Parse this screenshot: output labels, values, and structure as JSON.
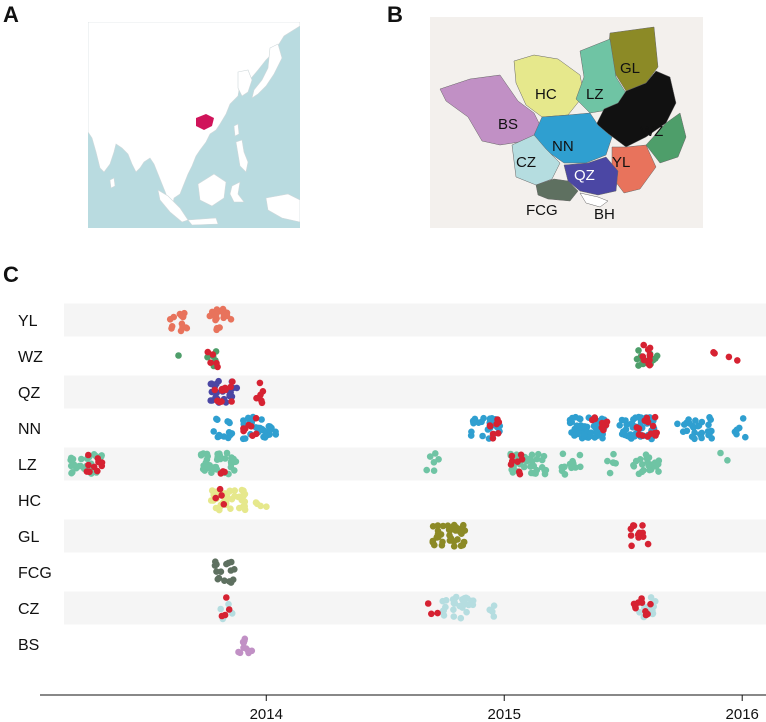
{
  "panels": {
    "a": "A",
    "b": "B",
    "c": "C"
  },
  "colors": {
    "YL": "#e8735c",
    "WZ": "#4e9e6a",
    "QZ": "#4b47a4",
    "NN": "#2f9fd0",
    "LZ": "#6fc4a4",
    "HC": "#e6e88c",
    "GL": "#8c8a26",
    "FCG": "#5e7060",
    "CZ": "#b5dde0",
    "BS": "#c190c5",
    "BH": "#ffffff",
    "BLACK": "#111111",
    "RED": "#d62232",
    "sea": "#b9dbe0",
    "land": "#ffffff",
    "guangxi": "#d0145a",
    "band": "#f5f5f5"
  },
  "map_b": {
    "labels": [
      "GL",
      "HC",
      "LZ",
      "BS",
      "NN",
      "WZ",
      "CZ",
      "YL",
      "QZ",
      "FCG",
      "BH"
    ]
  },
  "chart_data": {
    "type": "scatter",
    "xlim": [
      2013.15,
      2016.1
    ],
    "x_ticks": [
      2014,
      2015,
      2016
    ],
    "x_tick_labels": [
      "2014",
      "2015",
      "2016"
    ],
    "categories": [
      "YL",
      "WZ",
      "QZ",
      "NN",
      "LZ",
      "HC",
      "GL",
      "FCG",
      "CZ",
      "BS"
    ],
    "series": [
      {
        "category": "YL",
        "points": [
          [
            2013.63,
            14
          ],
          [
            2013.8,
            20
          ]
        ],
        "red_points": []
      },
      {
        "category": "WZ",
        "points": [
          [
            2013.62,
            1
          ],
          [
            2013.78,
            6
          ],
          [
            2015.6,
            14
          ]
        ],
        "red_points": [
          [
            2013.78,
            5
          ],
          [
            2015.6,
            10
          ],
          [
            2015.89,
            2
          ],
          [
            2015.96,
            2
          ]
        ]
      },
      {
        "category": "QZ",
        "points": [
          [
            2013.82,
            26
          ]
        ],
        "red_points": [
          [
            2013.82,
            12
          ],
          [
            2013.97,
            6
          ]
        ]
      },
      {
        "category": "NN",
        "points": [
          [
            2013.82,
            14
          ],
          [
            2013.97,
            30
          ],
          [
            2014.92,
            24
          ],
          [
            2015.35,
            50
          ],
          [
            2015.56,
            45
          ],
          [
            2015.8,
            30
          ],
          [
            2015.99,
            6
          ]
        ],
        "red_points": [
          [
            2013.93,
            8
          ],
          [
            2014.95,
            8
          ],
          [
            2015.4,
            10
          ],
          [
            2015.6,
            14
          ]
        ]
      },
      {
        "category": "LZ",
        "points": [
          [
            2013.25,
            30
          ],
          [
            2013.8,
            40
          ],
          [
            2014.7,
            6
          ],
          [
            2015.1,
            34
          ],
          [
            2015.28,
            14
          ],
          [
            2015.45,
            6
          ],
          [
            2015.6,
            22
          ],
          [
            2015.92,
            2
          ]
        ],
        "red_points": [
          [
            2013.28,
            10
          ],
          [
            2013.83,
            3
          ],
          [
            2015.06,
            8
          ]
        ]
      },
      {
        "category": "HC",
        "points": [
          [
            2013.84,
            45
          ],
          [
            2013.98,
            4
          ]
        ],
        "red_points": [
          [
            2013.8,
            4
          ]
        ]
      },
      {
        "category": "GL",
        "points": [
          [
            2014.77,
            40
          ]
        ],
        "red_points": [
          [
            2015.57,
            12
          ]
        ]
      },
      {
        "category": "FCG",
        "points": [
          [
            2013.82,
            16
          ]
        ],
        "red_points": []
      },
      {
        "category": "CZ",
        "points": [
          [
            2013.83,
            6
          ],
          [
            2014.8,
            28
          ],
          [
            2014.94,
            4
          ],
          [
            2015.6,
            14
          ]
        ],
        "red_points": [
          [
            2013.82,
            4
          ],
          [
            2014.7,
            3
          ],
          [
            2015.58,
            10
          ]
        ]
      },
      {
        "category": "BS",
        "points": [
          [
            2013.9,
            12
          ]
        ],
        "red_points": []
      }
    ]
  }
}
